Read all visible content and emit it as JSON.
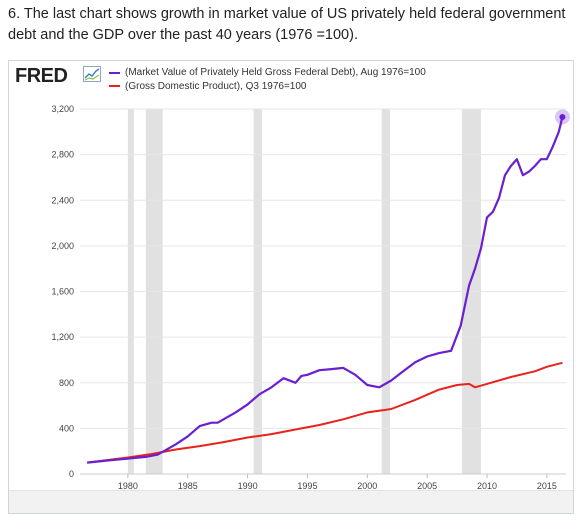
{
  "caption": "6. The last chart shows growth in market value of US privately held federal government debt and the GDP over the past 40 years (1976 =100).",
  "logo_text": "FRED",
  "colors": {
    "debt": "#6a1fd0",
    "gdp": "#e8231c",
    "recession": "#e1e1e1",
    "grid": "#e6e6e6"
  },
  "chart_data": {
    "type": "line",
    "xlim": [
      1976,
      2016.6
    ],
    "ylim": [
      0,
      3200
    ],
    "y_ticks": [
      0,
      400,
      800,
      1200,
      1600,
      2000,
      2400,
      2800,
      3200
    ],
    "y_tick_labels": [
      "0",
      "400",
      "800",
      "1,200",
      "1,600",
      "2,000",
      "2,400",
      "2,800",
      "3,200"
    ],
    "x_ticks": [
      1980,
      1985,
      1990,
      1995,
      2000,
      2005,
      2010,
      2015
    ],
    "x_tick_labels": [
      "1980",
      "1985",
      "1990",
      "1995",
      "2000",
      "2005",
      "2010",
      "2015"
    ],
    "grid": true,
    "legend_position": "top-left",
    "recessions": [
      [
        1980.0,
        1980.5
      ],
      [
        1981.5,
        1982.9
      ],
      [
        1990.5,
        1991.2
      ],
      [
        2001.2,
        2001.9
      ],
      [
        2007.9,
        2009.5
      ]
    ],
    "series": [
      {
        "name": "(Market Value of Privately Held Gross Federal Debt), Aug 1976=100",
        "x": [
          1976.6,
          1977.5,
          1978.5,
          1979.5,
          1980.5,
          1981.5,
          1982.5,
          1983.0,
          1984.0,
          1985.0,
          1986.0,
          1987.0,
          1987.5,
          1988.0,
          1989.0,
          1990.0,
          1991.0,
          1992.0,
          1993.0,
          1994.0,
          1994.5,
          1995.0,
          1996.0,
          1997.0,
          1998.0,
          1999.0,
          2000.0,
          2001.0,
          2002.0,
          2003.0,
          2004.0,
          2005.0,
          2006.0,
          2007.0,
          2007.8,
          2008.5,
          2009.0,
          2009.5,
          2010.0,
          2010.5,
          2011.0,
          2011.5,
          2012.0,
          2012.5,
          2013.0,
          2013.5,
          2014.0,
          2014.5,
          2015.0,
          2015.5,
          2016.0,
          2016.3
        ],
        "values": [
          100,
          110,
          120,
          130,
          140,
          150,
          170,
          200,
          260,
          330,
          420,
          450,
          450,
          480,
          540,
          610,
          700,
          760,
          840,
          800,
          860,
          870,
          910,
          920,
          930,
          870,
          780,
          760,
          820,
          900,
          980,
          1030,
          1060,
          1080,
          1300,
          1650,
          1800,
          1980,
          2250,
          2300,
          2420,
          2620,
          2700,
          2760,
          2620,
          2650,
          2700,
          2760,
          2760,
          2870,
          3000,
          3130
        ]
      },
      {
        "name": "(Gross Domestic Product), Q3 1976=100",
        "x": [
          1976.6,
          1978.0,
          1980.0,
          1982.0,
          1984.0,
          1986.0,
          1988.0,
          1990.0,
          1992.0,
          1994.0,
          1996.0,
          1998.0,
          2000.0,
          2002.0,
          2004.0,
          2006.0,
          2007.5,
          2008.5,
          2009.0,
          2010.0,
          2012.0,
          2014.0,
          2015.0,
          2016.3
        ],
        "values": [
          100,
          118,
          145,
          175,
          215,
          245,
          280,
          320,
          350,
          390,
          430,
          480,
          540,
          570,
          650,
          740,
          780,
          790,
          760,
          790,
          850,
          900,
          940,
          975
        ]
      }
    ]
  }
}
